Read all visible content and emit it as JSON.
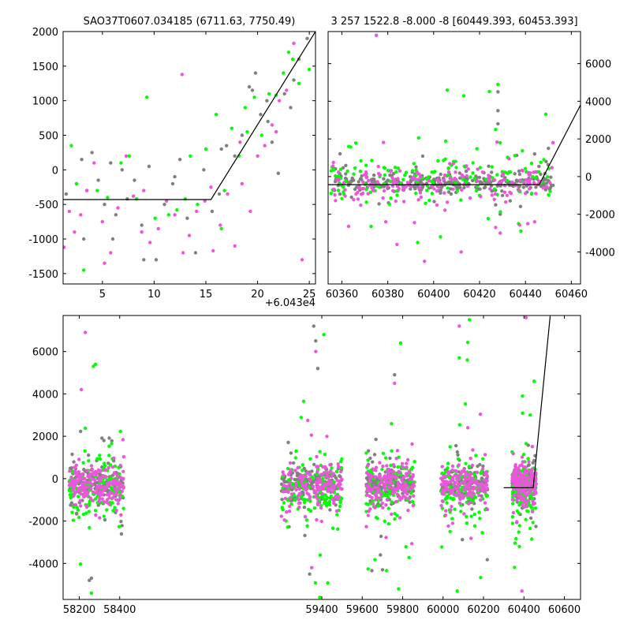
{
  "chart_data": [
    {
      "id": "p1",
      "type": "scatter",
      "title": "SAO37T0607.034185 (6711.63, 7750.49)",
      "xlim": [
        1.2,
        25.6
      ],
      "ylim": [
        -1650,
        2000
      ],
      "x_offset_label": "+6.043e4",
      "xticks": [
        5,
        10,
        15,
        20,
        25
      ],
      "yticks": [
        -1500,
        -1000,
        -500,
        0,
        500,
        1000,
        1500,
        2000
      ],
      "model_line": [
        [
          1.2,
          -430
        ],
        [
          15.5,
          -430
        ],
        [
          25.6,
          2000
        ]
      ],
      "series": [
        {
          "color": "#808080",
          "x": [
            1.5,
            2.5,
            3.0,
            3.5,
            4.0,
            4.6,
            5.2,
            5.8,
            6.3,
            6.9,
            7.4,
            8.1,
            8.8,
            9.5,
            10.2,
            11.0,
            11.8,
            12.5,
            13.2,
            14.0,
            14.8,
            15.6,
            16.3,
            17.0,
            17.8,
            18.5,
            19.2,
            19.8,
            20.3,
            20.9,
            21.4,
            22.0,
            22.6,
            23.2,
            24.0,
            24.8,
            3.2,
            6.0,
            9.0,
            12.0,
            16.5,
            19.5,
            21.0,
            23.5
          ],
          "y": [
            -350,
            -200,
            150,
            -300,
            250,
            -150,
            -500,
            100,
            -650,
            0,
            -420,
            -150,
            -800,
            50,
            -1300,
            -500,
            -200,
            150,
            -700,
            -1200,
            0,
            -600,
            -350,
            350,
            200,
            500,
            1200,
            1400,
            800,
            1000,
            400,
            -50,
            1100,
            900,
            1600,
            1900,
            -1000,
            -1000,
            -1300,
            -100,
            300,
            1150,
            700,
            1300
          ]
        },
        {
          "color": "#00ff00",
          "x": [
            2.0,
            2.5,
            3.2,
            4.5,
            5.5,
            6.8,
            7.6,
            8.3,
            9.3,
            10.1,
            11.4,
            12.2,
            13.0,
            14.2,
            15.0,
            16.0,
            16.8,
            17.5,
            18.2,
            19.0,
            19.7,
            20.4,
            21.1,
            21.8,
            22.5,
            23.0,
            23.4,
            24.0,
            25.0,
            13.5,
            16.5,
            18.8
          ],
          "y": [
            350,
            -200,
            -1450,
            -300,
            -400,
            100,
            200,
            -420,
            1050,
            -700,
            -650,
            -580,
            -420,
            -500,
            300,
            800,
            -300,
            600,
            200,
            550,
            1050,
            500,
            1100,
            1080,
            1400,
            1700,
            1600,
            1250,
            1450,
            200,
            -850,
            900
          ]
        },
        {
          "color": "#ee55dd",
          "x": [
            1.3,
            1.8,
            2.3,
            2.9,
            3.5,
            4.2,
            5.0,
            5.8,
            6.5,
            7.3,
            8.0,
            8.8,
            9.6,
            10.4,
            11.2,
            12.0,
            12.7,
            13.4,
            14.1,
            14.9,
            15.7,
            16.4,
            17.1,
            17.8,
            18.5,
            19.3,
            20.0,
            20.7,
            21.4,
            22.1,
            22.8,
            23.5,
            24.3,
            5.2,
            9.0,
            12.8,
            15.5,
            18.3,
            21.8
          ],
          "y": [
            -1120,
            -600,
            -900,
            -650,
            -300,
            100,
            -750,
            -1200,
            -550,
            200,
            -380,
            -900,
            -1050,
            -850,
            -450,
            -650,
            1380,
            -950,
            -600,
            -450,
            -1170,
            -800,
            -350,
            -1100,
            -200,
            -600,
            200,
            350,
            650,
            1000,
            1150,
            1830,
            -1300,
            -1350,
            -300,
            -1200,
            -250,
            400,
            550
          ]
        }
      ]
    },
    {
      "id": "p2",
      "type": "scatter",
      "title": "3 257 1522.8 -8.000 -8 [60449.393, 60453.393]",
      "xlim": [
        60354,
        60464
      ],
      "ylim": [
        -5700,
        7700
      ],
      "xticks": [
        60360,
        60380,
        60400,
        60420,
        60440,
        60460
      ],
      "yticks": [
        -4000,
        -2000,
        0,
        2000,
        4000,
        6000
      ],
      "model_line": [
        [
          60354,
          -430
        ],
        [
          60446,
          -430
        ],
        [
          60464,
          3800
        ]
      ],
      "series": [
        {
          "color": "#808080",
          "n": 300,
          "xrange": [
            60355,
            60452
          ],
          "center": -300,
          "spread": 500,
          "seed": 11,
          "extra_x": [
            60428,
            60428,
            60428,
            60427,
            60429,
            60444,
            60450,
            60449,
            60452,
            60430
          ],
          "extra_y": [
            4500,
            3500,
            2800,
            -1500,
            -2000,
            1200,
            1500,
            800,
            1800,
            -1000
          ]
        },
        {
          "color": "#00ff00",
          "n": 150,
          "xrange": [
            60355,
            60452
          ],
          "center": -200,
          "spread": 1100,
          "seed": 22,
          "extra_x": [
            60428,
            60429,
            60427,
            60448,
            60437,
            60438,
            60393,
            60403,
            60420,
            60363
          ],
          "extra_y": [
            4900,
            1800,
            2500,
            900,
            -2500,
            -2900,
            -3500,
            -3200,
            -1000,
            1600
          ]
        },
        {
          "color": "#ee55dd",
          "n": 170,
          "xrange": [
            60355,
            60452
          ],
          "center": -400,
          "spread": 900,
          "seed": 33,
          "extra_x": [
            60375,
            60396,
            60412,
            60427,
            60429,
            60441,
            60444,
            60432,
            60452,
            60384
          ],
          "extra_y": [
            7500,
            -4500,
            -4000,
            -2700,
            -3000,
            -2500,
            -2400,
            -1000,
            1800,
            -3600
          ]
        }
      ]
    },
    {
      "id": "p3",
      "type": "scatter",
      "title": "",
      "xlim": [
        58120,
        60680
      ],
      "ylim": [
        -5700,
        7700
      ],
      "xticks": [
        58200,
        58400,
        59400,
        59600,
        59800,
        60000,
        60200,
        60400,
        60600
      ],
      "yticks": [
        -4000,
        -2000,
        0,
        2000,
        4000,
        6000
      ],
      "axis_break_x": 58680,
      "model_line": [
        [
          60300,
          -430
        ],
        [
          60446,
          -430
        ],
        [
          60530,
          7700
        ]
      ],
      "seasons": [
        [
          58150,
          58420
        ],
        [
          59200,
          59500
        ],
        [
          59620,
          59860
        ],
        [
          59990,
          60220
        ],
        [
          60340,
          60460
        ]
      ],
      "series": [
        {
          "color": "#808080",
          "n": 900,
          "center": -250,
          "spread": 700,
          "seed": 101,
          "extra_x": [
            59360,
            59380,
            59370,
            59760,
            59700,
            59340,
            58260,
            58250,
            59690
          ],
          "extra_y": [
            7200,
            5200,
            6500,
            4900,
            -4300,
            -4500,
            -4700,
            -4800,
            -3600
          ]
        },
        {
          "color": "#00ff00",
          "n": 600,
          "center": -500,
          "spread": 1500,
          "seed": 202,
          "extra_x": [
            58280,
            58270,
            59410,
            59390,
            59790,
            59780,
            60080,
            60130,
            60070,
            60120,
            60450,
            58260
          ],
          "extra_y": [
            5400,
            5300,
            6800,
            -5600,
            6400,
            -5200,
            5700,
            7500,
            -5300,
            5600,
            4600,
            -5400
          ]
        },
        {
          "color": "#ee55dd",
          "n": 800,
          "center": -250,
          "spread": 900,
          "seed": 303,
          "extra_x": [
            58230,
            58210,
            59370,
            59760,
            60080,
            60410,
            60390,
            59350
          ],
          "extra_y": [
            6900,
            4200,
            6000,
            4500,
            7200,
            7600,
            -5300,
            -4200
          ]
        }
      ]
    }
  ]
}
